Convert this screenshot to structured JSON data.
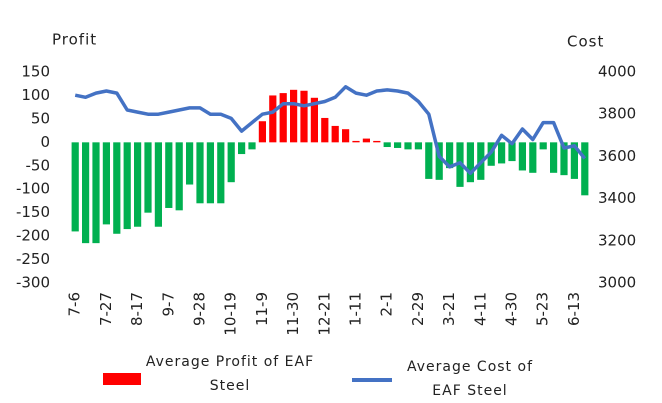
{
  "chart_data": {
    "type": "bar-line",
    "y_label": "Profit",
    "y2_label": "Cost",
    "categories": [
      "7-6",
      null,
      null,
      "7-27",
      null,
      null,
      "8-17",
      null,
      null,
      "9-7",
      null,
      null,
      "9-28",
      null,
      null,
      "10-19",
      null,
      null,
      "11-9",
      null,
      null,
      "11-30",
      null,
      null,
      "12-21",
      null,
      null,
      "1-11",
      null,
      null,
      "2-1",
      null,
      null,
      "2-29",
      null,
      null,
      "3-21",
      null,
      null,
      "4-11",
      null,
      null,
      "4-30",
      null,
      null,
      "5-23",
      null,
      null,
      "6-13",
      null
    ],
    "series": [
      {
        "name": "Average Profit of EAF Steel",
        "type": "bar",
        "positive_color": "#ff0000",
        "negative_color": "#00b050",
        "values": [
          -190,
          -215,
          -215,
          -175,
          -195,
          -185,
          -180,
          -150,
          -180,
          -140,
          -145,
          -90,
          -130,
          -130,
          -130,
          -85,
          -25,
          -15,
          45,
          100,
          105,
          112,
          110,
          95,
          52,
          35,
          28,
          3,
          8,
          3,
          -10,
          -12,
          -15,
          -15,
          -78,
          -80,
          -55,
          -95,
          -85,
          -80,
          -50,
          -45,
          -40,
          -60,
          -65,
          -15,
          -65,
          -70,
          -78,
          -113
        ]
      },
      {
        "name": "Average Cost of EAF Steel",
        "type": "line",
        "axis": "y2",
        "color": "#4472c4",
        "values": [
          3890,
          3880,
          3900,
          3910,
          3900,
          3820,
          3810,
          3800,
          3800,
          3810,
          3820,
          3830,
          3830,
          3800,
          3800,
          3780,
          3720,
          3760,
          3800,
          3810,
          3850,
          3850,
          3840,
          3850,
          3860,
          3880,
          3930,
          3900,
          3890,
          3910,
          3915,
          3910,
          3900,
          3860,
          3800,
          3600,
          3550,
          3570,
          3520,
          3570,
          3620,
          3700,
          3660,
          3730,
          3680,
          3760,
          3760,
          3640,
          3650,
          3590
        ]
      }
    ],
    "ylim": [
      -300,
      150
    ],
    "yticks": [
      -300,
      -250,
      -200,
      -150,
      -100,
      -50,
      0,
      50,
      100,
      150
    ],
    "y2lim": [
      3000,
      4000
    ],
    "y2ticks": [
      3000,
      3200,
      3400,
      3600,
      3800,
      4000
    ],
    "legend": "bottom"
  }
}
